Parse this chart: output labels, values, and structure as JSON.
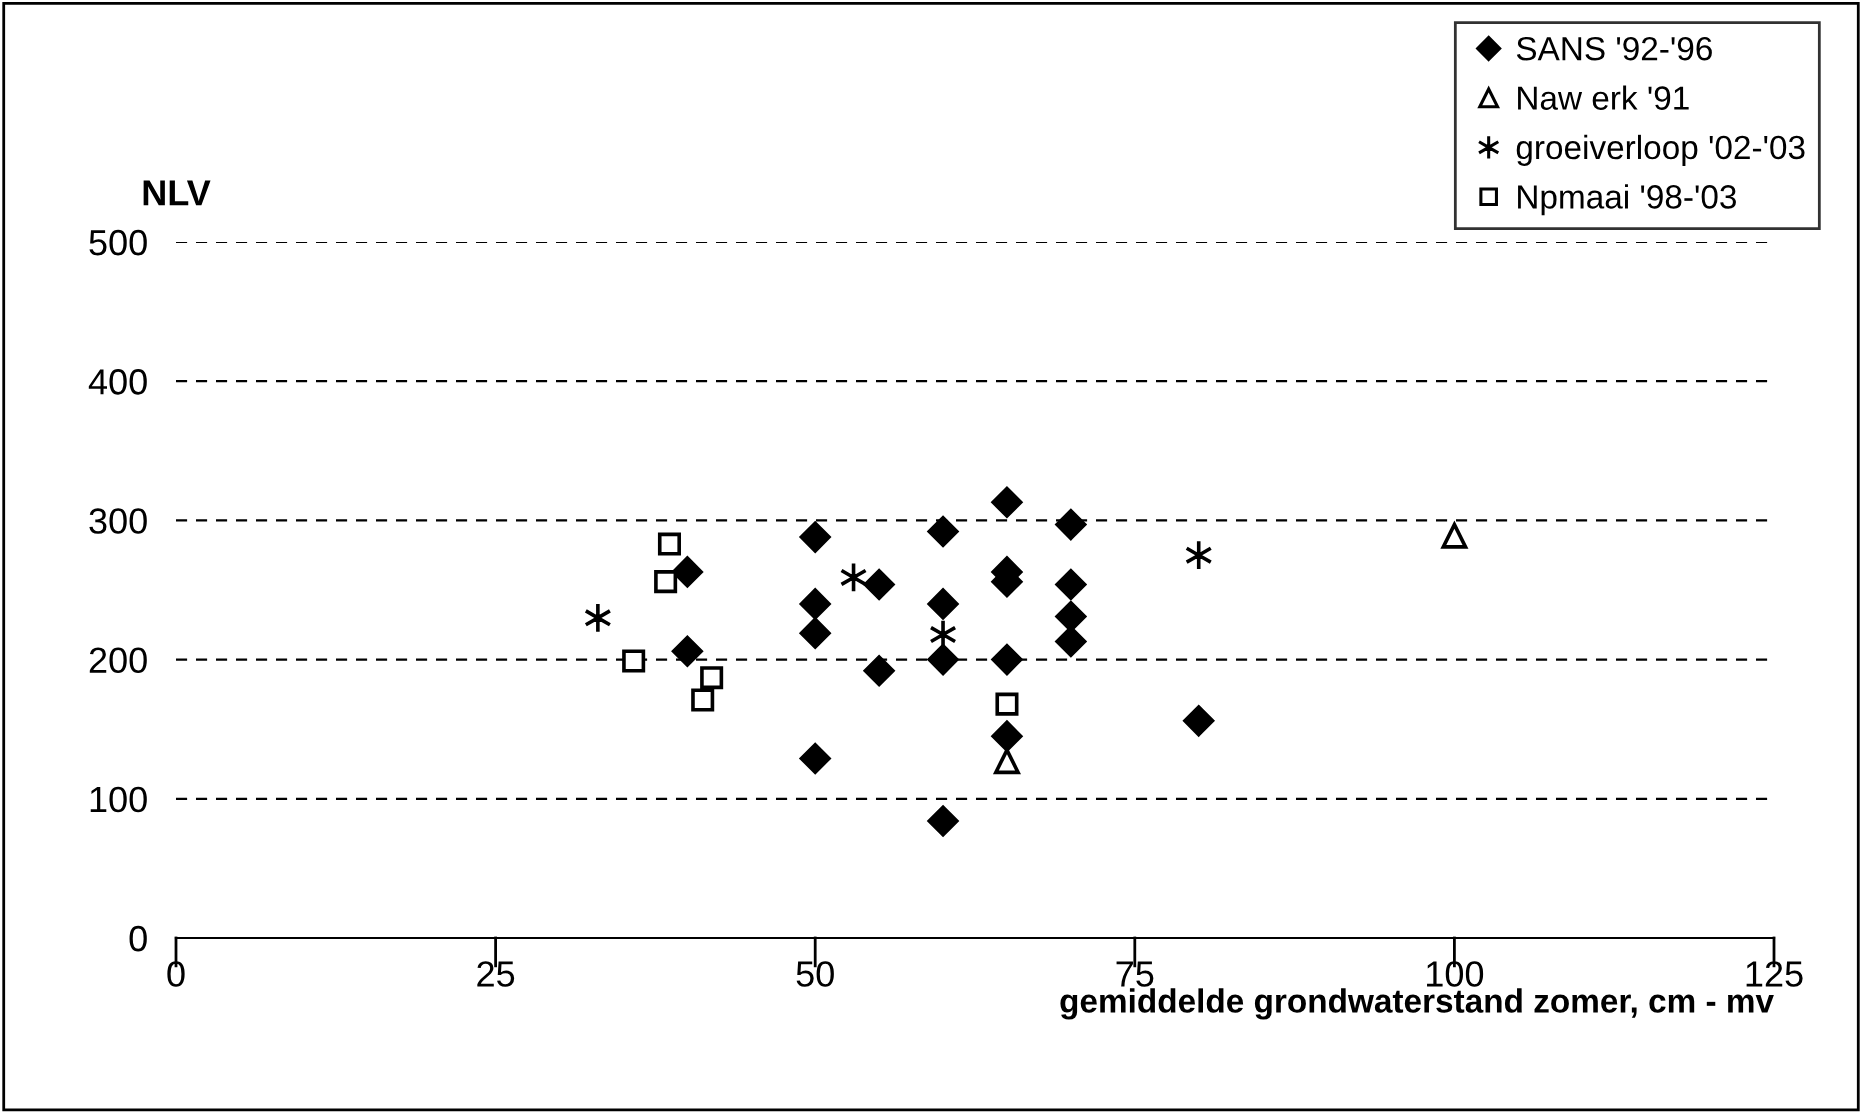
{
  "chart_data": {
    "type": "scatter",
    "xlabel": "gemiddelde grondwaterstand zomer, cm - mv",
    "ylabel": "NLV",
    "xlim": [
      0,
      125
    ],
    "xticks": [
      0,
      25,
      50,
      75,
      100,
      125
    ],
    "ylim": [
      0,
      500
    ],
    "yticks": [
      0,
      100,
      200,
      300,
      400,
      500
    ],
    "grid": "y",
    "legend": "top right",
    "series": [
      {
        "name": "SANS '92-'96",
        "color": "#000000",
        "marker": "diamond",
        "x": [
          40,
          40,
          50,
          50,
          50,
          50,
          55,
          55,
          60,
          60,
          60,
          60,
          65,
          65,
          65,
          65,
          65,
          70,
          70,
          70,
          70,
          80
        ],
        "values": [
          263,
          206,
          288,
          240,
          219,
          129,
          254,
          192,
          292,
          240,
          200,
          84,
          313,
          263,
          256,
          200,
          145,
          297,
          254,
          231,
          213,
          156
        ]
      },
      {
        "name": "Naw erk '91",
        "color": "#000000",
        "marker": "triangle",
        "x": [
          65,
          100
        ],
        "values": [
          127,
          289
        ]
      },
      {
        "name": "groeiverloop '02-'03",
        "color": "#000000",
        "marker": "cross",
        "x": [
          33,
          53,
          60,
          80
        ],
        "values": [
          230,
          259,
          218,
          275
        ]
      },
      {
        "name": "Npmaai '98-'03",
        "color": "#000000",
        "marker": "square",
        "x": [
          38.6,
          38.3,
          35.8,
          41.9,
          41.2,
          65
        ],
        "values": [
          283,
          256,
          199,
          187,
          171,
          168
        ]
      }
    ]
  }
}
